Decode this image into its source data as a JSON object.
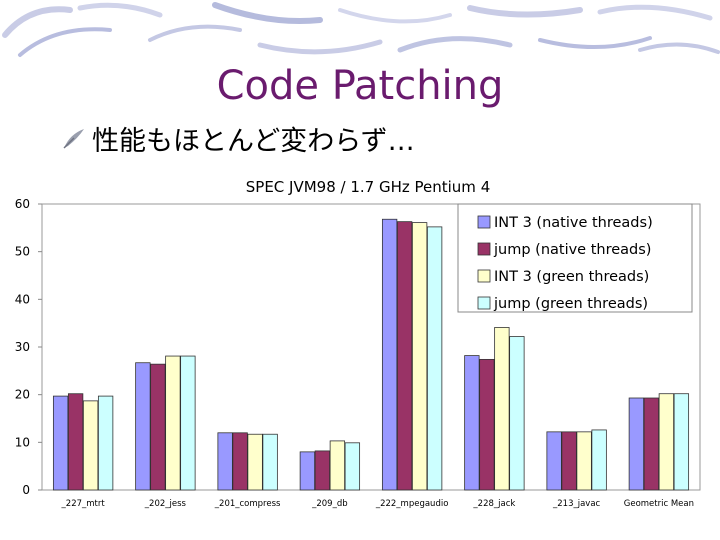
{
  "slide": {
    "title": "Code Patching",
    "bullet": "性能もほとんど変わらず…",
    "bullet_icon": "quill-bullet-icon",
    "header_decoration": "brush-stroke-swirls"
  },
  "colors": {
    "title": "#6a1b6e",
    "plot_bg": "#ffffff",
    "series": [
      "#9999ff",
      "#993366",
      "#ffffcc",
      "#ccffff"
    ]
  },
  "chart_data": {
    "type": "bar",
    "title": "SPEC JVM98 / 1.7 GHz Pentium 4",
    "xlabel": "",
    "ylabel": "",
    "ylim": [
      0,
      60
    ],
    "yticks": [
      "0",
      "10",
      "20",
      "30",
      "40",
      "50",
      "60"
    ],
    "grid": false,
    "legend_position": "top-right",
    "categories": [
      "_227_mtrt",
      "_202_jess",
      "_201_compress",
      "_209_db",
      "_222_mpegaudio",
      "_228_jack",
      "_213_javac",
      "Geometric Mean"
    ],
    "series": [
      {
        "name": "INT 3 (native threads)",
        "values": [
          19.7,
          26.7,
          12.0,
          8.0,
          56.8,
          28.2,
          12.2,
          19.3
        ]
      },
      {
        "name": "jump (native threads)",
        "values": [
          20.2,
          26.4,
          12.0,
          8.2,
          56.3,
          27.4,
          12.2,
          19.3
        ]
      },
      {
        "name": "INT 3 (green threads)",
        "values": [
          18.7,
          28.1,
          11.7,
          10.3,
          56.1,
          34.1,
          12.2,
          20.2
        ]
      },
      {
        "name": "jump (green threads)",
        "values": [
          19.7,
          28.1,
          11.7,
          9.9,
          55.2,
          32.2,
          12.6,
          20.2
        ]
      }
    ]
  }
}
